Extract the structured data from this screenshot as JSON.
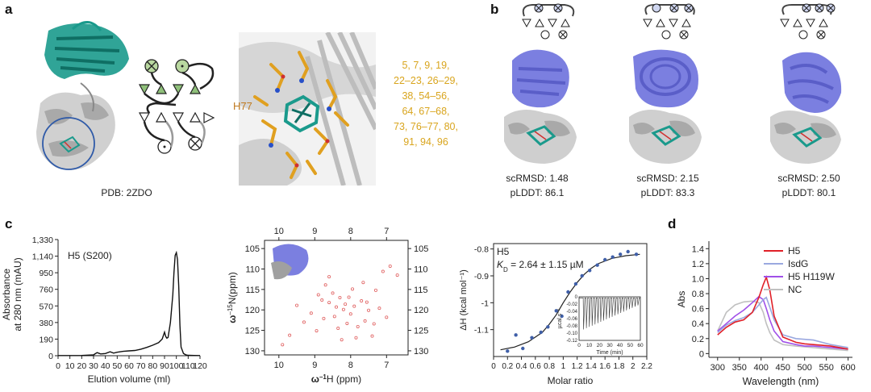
{
  "panels": {
    "a": {
      "letter": "a",
      "pdb_label": "PDB: 2ZDO",
      "residue_label": "H77",
      "residues": [
        "5, 7, 9, 19,",
        "22–23, 26–29,",
        "38, 54–56,",
        "64, 67–68,",
        "73, 76–77, 80,",
        "91, 94, 96"
      ],
      "colors": {
        "teal": "#1a9a8c",
        "residue": "#e0a020",
        "circle": "#2f5aa8"
      }
    },
    "b": {
      "letter": "b",
      "designs": [
        {
          "scrmsd": "scRMSD: 1.48",
          "plddt": "pLDDT: 86.1"
        },
        {
          "scrmsd": "scRMSD: 2.15",
          "plddt": "pLDDT: 83.3"
        },
        {
          "scrmsd": "scRMSD: 2.50",
          "plddt": "pLDDT: 80.1"
        }
      ],
      "colors": {
        "design": "#7b7fe0",
        "scaffold": "#c9c9c9"
      }
    },
    "c": {
      "letter": "c"
    },
    "d": {
      "letter": "d"
    }
  },
  "chart_data": [
    {
      "type": "line",
      "id": "sec",
      "title": "H5 (S200)",
      "xlabel": "Elution volume (ml)",
      "ylabel_line1": "Absorbance",
      "ylabel_line2": "at 280 nm (mAU)",
      "xlim": [
        0,
        120
      ],
      "ylim": [
        0,
        1330
      ],
      "xticks": [
        0,
        10,
        20,
        30,
        40,
        50,
        60,
        70,
        80,
        90,
        100,
        110,
        120
      ],
      "yticks": [
        0,
        190,
        380,
        570,
        760,
        950,
        1140,
        1330
      ],
      "ytick_labels": [
        "0",
        "190",
        "380",
        "570",
        "760",
        "950",
        "1,140",
        "1,330"
      ],
      "x": [
        0,
        20,
        30,
        33,
        36,
        40,
        44,
        47,
        50,
        55,
        60,
        65,
        70,
        75,
        80,
        85,
        88,
        90,
        91,
        92,
        93,
        95,
        97,
        98,
        99,
        100,
        101,
        102,
        103,
        104,
        106,
        108,
        110,
        115,
        120
      ],
      "y": [
        2,
        3,
        10,
        35,
        20,
        25,
        45,
        30,
        40,
        50,
        55,
        60,
        75,
        95,
        120,
        150,
        190,
        270,
        220,
        200,
        210,
        380,
        700,
        950,
        1150,
        1180,
        1100,
        800,
        350,
        100,
        25,
        10,
        5,
        3,
        2
      ]
    },
    {
      "type": "scatter",
      "id": "hsqc",
      "xlabel_prefix": "ω",
      "xlabel_sup": "–1",
      "xlabel_suffix": "H (ppm)",
      "ylabel_prefix": "ω",
      "ylabel_sup": "–15",
      "ylabel_suffix": "N(ppm)",
      "xlim": [
        10.4,
        6.4
      ],
      "ylim": [
        103,
        131
      ],
      "xticks": [
        10,
        9,
        8,
        7
      ],
      "yticks": [
        105,
        110,
        115,
        120,
        125,
        130
      ],
      "points": [
        [
          9.9,
          128.5
        ],
        [
          9.7,
          126.2
        ],
        [
          8.8,
          117.6
        ],
        [
          8.6,
          118.2
        ],
        [
          8.4,
          119.3
        ],
        [
          8.2,
          119.9
        ],
        [
          8.0,
          121.0
        ],
        [
          8.3,
          117.0
        ],
        [
          7.9,
          119.1
        ],
        [
          7.7,
          117.8
        ],
        [
          7.5,
          120.1
        ],
        [
          7.3,
          115.2
        ],
        [
          7.1,
          110.6
        ],
        [
          6.9,
          109.3
        ],
        [
          7.95,
          114.9
        ],
        [
          8.7,
          113.9
        ],
        [
          8.5,
          115.9
        ],
        [
          8.1,
          123.3
        ],
        [
          7.8,
          124.1
        ],
        [
          7.6,
          122.7
        ],
        [
          9.1,
          120.8
        ],
        [
          9.3,
          123.0
        ],
        [
          8.95,
          125.1
        ],
        [
          7.4,
          126.4
        ],
        [
          8.25,
          127.3
        ],
        [
          7.2,
          119.6
        ],
        [
          6.7,
          111.5
        ],
        [
          8.45,
          121.6
        ],
        [
          8.05,
          116.9
        ],
        [
          7.65,
          113.3
        ],
        [
          9.5,
          118.9
        ],
        [
          8.75,
          122.1
        ],
        [
          7.85,
          126.8
        ],
        [
          8.6,
          111.9
        ],
        [
          7.35,
          123.4
        ],
        [
          8.15,
          118.6
        ],
        [
          7.55,
          118.1
        ],
        [
          8.9,
          116.3
        ],
        [
          7.0,
          121.8
        ],
        [
          8.35,
          124.5
        ]
      ]
    },
    {
      "type": "scatter",
      "id": "itc",
      "title": "H5",
      "annotation_kd_symbol": "K",
      "annotation_kd_sub": "D",
      "annotation_kd_value": " = 2.64 ± 1.15 µM",
      "xlabel": "Molar ratio",
      "ylabel": "ΔH (kcal mol⁻¹)",
      "xlim": [
        0,
        2.2
      ],
      "ylim": [
        -1.2,
        -0.78
      ],
      "xticks": [
        0,
        0.2,
        0.4,
        0.6,
        0.8,
        1.0,
        1.2,
        1.4,
        1.6,
        1.8,
        2.0,
        2.2
      ],
      "xtick_labels": [
        "0",
        "0.2",
        "0.4",
        "0.6",
        "0.8",
        "1",
        "1.2",
        "1.4",
        "1.6",
        "1.8",
        "2",
        "2.2"
      ],
      "yticks": [
        -0.8,
        -0.9,
        -1.0,
        -1.1
      ],
      "ytick_labels": [
        "-0.8",
        "-0.9",
        "-1",
        "-1.1"
      ],
      "points_x": [
        0.2,
        0.32,
        0.42,
        0.55,
        0.68,
        0.78,
        0.9,
        0.98,
        1.07,
        1.18,
        1.27,
        1.38,
        1.49,
        1.6,
        1.71,
        1.82,
        1.93,
        2.05
      ],
      "points_y": [
        -1.18,
        -1.12,
        -1.17,
        -1.13,
        -1.11,
        -1.09,
        -1.03,
        -1.05,
        -0.96,
        -0.93,
        -0.9,
        -0.88,
        -0.86,
        -0.84,
        -0.83,
        -0.82,
        -0.81,
        -0.82
      ],
      "fit_x": [
        0.1,
        0.3,
        0.5,
        0.7,
        0.8,
        0.9,
        1.0,
        1.1,
        1.2,
        1.3,
        1.4,
        1.5,
        1.7,
        1.9,
        2.1
      ],
      "fit_y": [
        -1.175,
        -1.165,
        -1.145,
        -1.11,
        -1.08,
        -1.045,
        -1.0,
        -0.96,
        -0.925,
        -0.895,
        -0.872,
        -0.855,
        -0.835,
        -0.825,
        -0.82
      ],
      "inset": {
        "xlabel": "Time (min)",
        "ylabel": "µcal s⁻¹",
        "xlim": [
          0,
          60
        ],
        "ylim": [
          -0.12,
          0.0
        ],
        "xticks": [
          0,
          10,
          20,
          30,
          40,
          50,
          60
        ],
        "yticks": [
          0,
          -0.02,
          -0.04,
          -0.06,
          -0.08,
          -0.1,
          -0.12
        ],
        "ytick_labels": [
          "0",
          "-0.02",
          "-0.04",
          "-0.06",
          "-0.08",
          "-0.10",
          "-0.12"
        ],
        "n_injections": 20
      }
    },
    {
      "type": "line",
      "id": "uvvis",
      "xlabel": "Wavelength (nm)",
      "ylabel": "Abs",
      "xlim": [
        280,
        610
      ],
      "ylim": [
        -0.05,
        1.5
      ],
      "xticks": [
        300,
        350,
        400,
        450,
        500,
        550,
        600
      ],
      "yticks": [
        0,
        0.2,
        0.4,
        0.6,
        0.8,
        1.0,
        1.2,
        1.4
      ],
      "ytick_labels": [
        "0",
        "0.2",
        "0.4",
        "0.6",
        "0.8",
        "1.0",
        "1.2",
        "1.4"
      ],
      "x": [
        300,
        320,
        340,
        360,
        380,
        395,
        405,
        412,
        420,
        430,
        450,
        480,
        500,
        520,
        540,
        560,
        580,
        600
      ],
      "series": [
        {
          "name": "H5",
          "color": "#e02028",
          "values": [
            0.25,
            0.35,
            0.42,
            0.45,
            0.55,
            0.75,
            0.92,
            1.02,
            0.85,
            0.5,
            0.22,
            0.15,
            0.13,
            0.12,
            0.11,
            0.1,
            0.08,
            0.06
          ]
        },
        {
          "name": "IsdG",
          "color": "#9aa8e0",
          "values": [
            0.28,
            0.38,
            0.44,
            0.48,
            0.55,
            0.65,
            0.72,
            0.75,
            0.62,
            0.45,
            0.25,
            0.2,
            0.19,
            0.18,
            0.15,
            0.12,
            0.1,
            0.08
          ]
        },
        {
          "name": "H5 H119W",
          "color": "#a050e8",
          "values": [
            0.3,
            0.4,
            0.5,
            0.58,
            0.68,
            0.76,
            0.72,
            0.6,
            0.45,
            0.3,
            0.16,
            0.12,
            0.1,
            0.1,
            0.09,
            0.08,
            0.07,
            0.06
          ]
        },
        {
          "name": "NC",
          "color": "#c0c0c0",
          "values": [
            0.3,
            0.55,
            0.65,
            0.69,
            0.7,
            0.68,
            0.55,
            0.4,
            0.28,
            0.18,
            0.12,
            0.1,
            0.09,
            0.08,
            0.07,
            0.06,
            0.05,
            0.04
          ]
        }
      ]
    }
  ]
}
